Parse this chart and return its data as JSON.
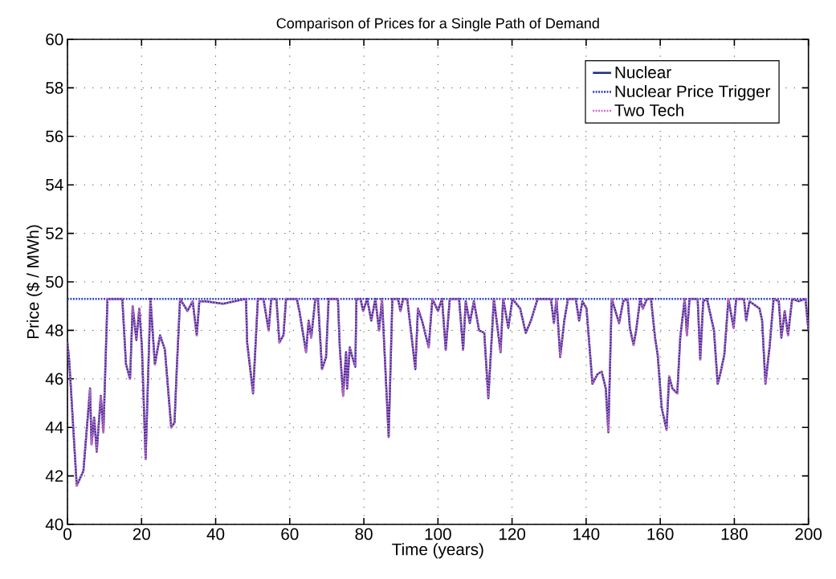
{
  "chart_data": {
    "type": "line",
    "title": "Comparison of Prices for a Single Path of Demand",
    "xlabel": "Time (years)",
    "ylabel": "Price ($ / MWh)",
    "xlim": [
      0,
      200
    ],
    "ylim": [
      40,
      60
    ],
    "xticks": [
      0,
      20,
      40,
      60,
      80,
      100,
      120,
      140,
      160,
      180,
      200
    ],
    "yticks": [
      40,
      42,
      44,
      46,
      48,
      50,
      52,
      54,
      56,
      58,
      60
    ],
    "grid": true,
    "legend": "top right",
    "series": [
      {
        "name": "Nuclear",
        "color": "#1c2f8a",
        "line_style": "solid",
        "x": [
          0,
          0.5,
          2.5,
          4.3,
          6.1,
          6.5,
          7.2,
          7.9,
          9.0,
          9.7,
          10.8,
          14.8,
          15.8,
          16.9,
          17.6,
          18.6,
          19.4,
          20.1,
          21.1,
          22.4,
          23.6,
          25.0,
          26.3,
          28.0,
          28.9,
          29.5,
          30.4,
          32.4,
          33.8,
          34.9,
          35.6,
          37.4,
          42.0,
          48.2,
          48.5,
          50.1,
          51.4,
          52.9,
          54.3,
          55.0,
          56.4,
          57.2,
          58.3,
          59.0,
          61.9,
          62.6,
          64.4,
          65.1,
          65.8,
          66.9,
          67.6,
          68.7,
          69.8,
          70.5,
          73.0,
          73.5,
          74.4,
          75.2,
          75.5,
          76.2,
          76.9,
          77.7,
          78.0,
          79.1,
          79.8,
          80.9,
          82.0,
          83.1,
          84.1,
          84.9,
          86.7,
          87.7,
          89.2,
          89.9,
          90.6,
          91.7,
          93.9,
          94.6,
          95.7,
          97.5,
          98.5,
          100.0,
          101.1,
          102.1,
          103.2,
          105.7,
          106.8,
          107.5,
          108.6,
          109.7,
          111.1,
          112.5,
          113.6,
          115.1,
          116.9,
          117.6,
          119.0,
          120.1,
          122.2,
          123.7,
          125.1,
          126.9,
          130.5,
          131.3,
          132.0,
          133.0,
          134.1,
          135.1,
          137.2,
          138.1,
          139.0,
          140.1,
          141.7,
          143.1,
          144.2,
          145.3,
          146.0,
          146.9,
          148.9,
          150.0,
          151.2,
          151.8,
          152.8,
          153.5,
          154.6,
          155.3,
          156.4,
          157.5,
          158.6,
          159.3,
          160.4,
          161.7,
          162.4,
          163.3,
          164.6,
          165.4,
          166.6,
          167.2,
          167.9,
          170.1,
          170.8,
          171.6,
          172.6,
          174.5,
          175.5,
          176.2,
          177.3,
          178.4,
          179.8,
          180.5,
          182.6,
          183.2,
          184.1,
          186.8,
          187.5,
          188.4,
          189.5,
          190.6,
          192.0,
          192.7,
          193.6,
          194.5,
          195.6,
          197.4,
          199.2,
          200
        ],
        "values": [
          47.5,
          46.7,
          41.6,
          42.2,
          45.6,
          43.3,
          44.4,
          43.0,
          45.3,
          43.8,
          49.3,
          49.3,
          46.6,
          46.0,
          49.0,
          47.6,
          48.9,
          47.3,
          42.7,
          49.3,
          46.6,
          47.8,
          47.2,
          44.0,
          44.2,
          46.4,
          49.3,
          48.8,
          49.2,
          47.8,
          49.2,
          49.2,
          49.1,
          49.3,
          47.5,
          45.4,
          49.3,
          49.3,
          48.0,
          49.3,
          49.3,
          47.5,
          47.8,
          49.3,
          49.3,
          48.8,
          47.1,
          48.4,
          47.7,
          49.3,
          49.3,
          46.4,
          46.9,
          49.3,
          49.3,
          47.3,
          45.3,
          47.1,
          45.6,
          47.3,
          46.9,
          46.5,
          49.3,
          49.3,
          48.8,
          49.3,
          48.4,
          49.3,
          48.0,
          49.3,
          43.6,
          49.3,
          49.3,
          48.8,
          49.3,
          49.3,
          46.4,
          48.9,
          48.4,
          47.3,
          49.3,
          48.8,
          49.3,
          47.2,
          49.3,
          49.3,
          47.2,
          49.2,
          48.3,
          49.2,
          48.0,
          47.9,
          45.2,
          49.3,
          47.1,
          49.3,
          48.1,
          49.3,
          48.9,
          47.9,
          48.4,
          49.3,
          49.3,
          48.3,
          49.3,
          46.9,
          48.4,
          49.3,
          49.3,
          48.4,
          49.2,
          48.9,
          45.8,
          46.2,
          46.3,
          45.6,
          43.8,
          49.3,
          48.3,
          49.2,
          49.3,
          48.1,
          47.4,
          48.0,
          49.3,
          48.9,
          49.3,
          49.3,
          47.7,
          47.0,
          44.8,
          43.9,
          46.1,
          45.6,
          45.4,
          47.7,
          49.3,
          47.8,
          49.3,
          49.3,
          46.8,
          49.2,
          49.3,
          48.0,
          45.8,
          46.2,
          47.0,
          49.3,
          48.1,
          49.3,
          49.3,
          48.4,
          49.2,
          48.9,
          48.4,
          45.8,
          47.3,
          49.3,
          49.2,
          47.7,
          48.8,
          47.8,
          49.3,
          49.2,
          49.3,
          48.0
        ]
      },
      {
        "name": "Nuclear Price Trigger",
        "color": "#2b3fc0",
        "line_style": "dotted",
        "x": [
          0,
          200
        ],
        "values": [
          49.3,
          49.3
        ]
      },
      {
        "name": "Two Tech",
        "color": "#cc66cc",
        "line_style": "dotted",
        "x": [
          0,
          0.5,
          2.5,
          4.3,
          6.1,
          6.5,
          7.2,
          7.9,
          9.0,
          9.7,
          10.8,
          14.8,
          15.8,
          16.9,
          17.6,
          18.6,
          19.4,
          20.1,
          21.1,
          22.4,
          23.6,
          25.0,
          26.3,
          28.0,
          28.9,
          29.5,
          30.4,
          32.4,
          33.8,
          34.9,
          35.6,
          37.4,
          42.0,
          48.2,
          48.5,
          50.1,
          51.4,
          52.9,
          54.3,
          55.0,
          56.4,
          57.2,
          58.3,
          59.0,
          61.9,
          62.6,
          64.4,
          65.1,
          65.8,
          66.9,
          67.6,
          68.7,
          69.8,
          70.5,
          73.0,
          73.5,
          74.4,
          75.2,
          75.5,
          76.2,
          76.9,
          77.7,
          78.0,
          79.1,
          79.8,
          80.9,
          82.0,
          83.1,
          84.1,
          84.9,
          86.7,
          87.7,
          89.2,
          89.9,
          90.6,
          91.7,
          93.9,
          94.6,
          95.7,
          97.5,
          98.5,
          100.0,
          101.1,
          102.1,
          103.2,
          105.7,
          106.8,
          107.5,
          108.6,
          109.7,
          111.1,
          112.5,
          113.6,
          115.1,
          116.9,
          117.6,
          119.0,
          120.1,
          122.2,
          123.7,
          125.1,
          126.9,
          130.5,
          131.3,
          132.0,
          133.0,
          134.1,
          135.1,
          137.2,
          138.1,
          139.0,
          140.1,
          141.7,
          143.1,
          144.2,
          145.3,
          146.0,
          146.9,
          148.9,
          150.0,
          151.2,
          151.8,
          152.8,
          153.5,
          154.6,
          155.3,
          156.4,
          157.5,
          158.6,
          159.3,
          160.4,
          161.7,
          162.4,
          163.3,
          164.6,
          165.4,
          166.6,
          167.2,
          167.9,
          170.1,
          170.8,
          171.6,
          172.6,
          174.5,
          175.5,
          176.2,
          177.3,
          178.4,
          179.8,
          180.5,
          182.6,
          183.2,
          184.1,
          186.8,
          187.5,
          188.4,
          189.5,
          190.6,
          192.0,
          192.7,
          193.6,
          194.5,
          195.6,
          197.4,
          199.2,
          200
        ],
        "values": [
          47.5,
          46.7,
          41.6,
          42.2,
          45.6,
          43.3,
          44.4,
          43.0,
          45.3,
          43.8,
          49.3,
          49.3,
          46.6,
          46.0,
          49.0,
          47.6,
          48.9,
          47.3,
          42.7,
          49.3,
          46.6,
          47.8,
          47.2,
          44.0,
          44.2,
          46.4,
          49.3,
          48.8,
          49.2,
          47.8,
          49.2,
          49.2,
          49.1,
          49.3,
          47.5,
          45.4,
          49.3,
          49.3,
          48.0,
          49.3,
          49.3,
          47.5,
          47.8,
          49.3,
          49.3,
          48.8,
          47.1,
          48.4,
          47.7,
          49.3,
          49.3,
          46.4,
          46.9,
          49.3,
          49.3,
          47.3,
          45.3,
          47.1,
          45.6,
          47.3,
          46.9,
          46.5,
          49.3,
          49.3,
          48.8,
          49.3,
          48.4,
          49.3,
          48.0,
          49.3,
          43.6,
          49.3,
          49.3,
          48.8,
          49.3,
          49.3,
          46.4,
          48.9,
          48.4,
          47.3,
          49.3,
          48.8,
          49.3,
          47.2,
          49.3,
          49.3,
          47.2,
          49.2,
          48.3,
          49.2,
          48.0,
          47.9,
          45.2,
          49.3,
          47.1,
          49.3,
          48.1,
          49.3,
          48.9,
          47.9,
          48.4,
          49.3,
          49.3,
          48.3,
          49.3,
          46.9,
          48.4,
          49.3,
          49.3,
          48.4,
          49.2,
          48.9,
          45.8,
          46.2,
          46.3,
          45.6,
          43.8,
          49.3,
          48.3,
          49.2,
          49.3,
          48.1,
          47.4,
          48.0,
          49.3,
          48.9,
          49.3,
          49.3,
          47.7,
          47.0,
          44.8,
          43.9,
          46.1,
          45.6,
          45.4,
          47.7,
          49.3,
          47.8,
          49.3,
          49.3,
          46.8,
          49.2,
          49.3,
          48.0,
          45.8,
          46.2,
          47.0,
          49.3,
          48.1,
          49.3,
          49.3,
          48.4,
          49.2,
          48.9,
          48.4,
          45.8,
          47.3,
          49.3,
          49.2,
          47.7,
          48.8,
          47.8,
          49.3,
          49.2,
          49.3,
          48.0
        ]
      }
    ]
  }
}
